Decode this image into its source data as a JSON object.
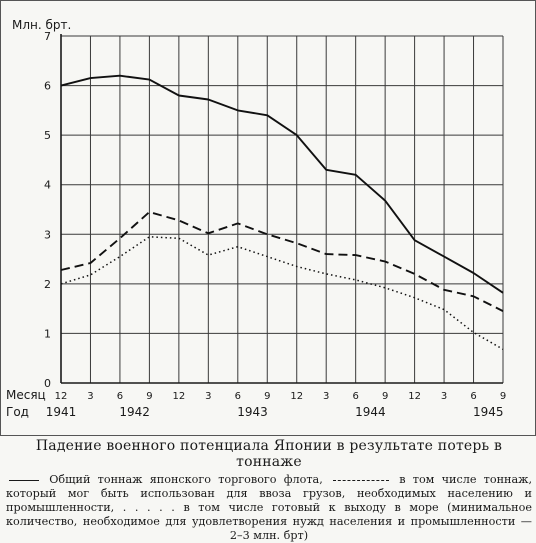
{
  "chart_data": {
    "type": "line",
    "ylabel": "Млн. брт.",
    "ylim": [
      0,
      7
    ],
    "yticks": [
      "0",
      "1",
      "2",
      "3",
      "4",
      "5",
      "6",
      "7"
    ],
    "xlabel_month": "Месяц",
    "xlabel_year": "Год",
    "month_ticks": [
      "12",
      "3",
      "6",
      "9",
      "12",
      "3",
      "6",
      "9",
      "12",
      "3",
      "6",
      "9",
      "12",
      "3",
      "6",
      "9"
    ],
    "year_labels": [
      {
        "label": "1941",
        "at": 0
      },
      {
        "label": "1942",
        "at": 2.5
      },
      {
        "label": "1943",
        "at": 6.5
      },
      {
        "label": "1944",
        "at": 10.5
      },
      {
        "label": "1945",
        "at": 14.5
      }
    ],
    "grid": true,
    "series": [
      {
        "style": "solid",
        "values": [
          6.0,
          6.15,
          6.2,
          6.12,
          5.8,
          5.72,
          5.5,
          5.4,
          5.0,
          4.3,
          4.2,
          3.68,
          2.88,
          2.55,
          2.22,
          1.82
        ]
      },
      {
        "style": "dashed",
        "values": [
          2.28,
          2.42,
          2.92,
          3.45,
          3.28,
          3.02,
          3.22,
          3.0,
          2.82,
          2.6,
          2.58,
          2.45,
          2.2,
          1.88,
          1.75,
          1.45
        ]
      },
      {
        "style": "dotted",
        "values": [
          2.0,
          2.18,
          2.55,
          2.95,
          2.92,
          2.58,
          2.75,
          2.55,
          2.35,
          2.2,
          2.08,
          1.92,
          1.72,
          1.48,
          1.02,
          0.68
        ]
      }
    ]
  },
  "caption": {
    "title": "Падение военного потенциала Японии в результате потерь в тоннаже",
    "legend_1": "Общий тоннаж японского торгового флота,",
    "legend_2": "в том числе тоннаж, который мог быть использован для ввоза грузов, необходимых населению и промышленности,",
    "legend_3_prefix": ". . . . .",
    "legend_3": "в том числе готовый к выходу в море (минимальное количество, необходимое для удовлетворения нужд населения и промышленности — 2–3 млн. брт)"
  }
}
